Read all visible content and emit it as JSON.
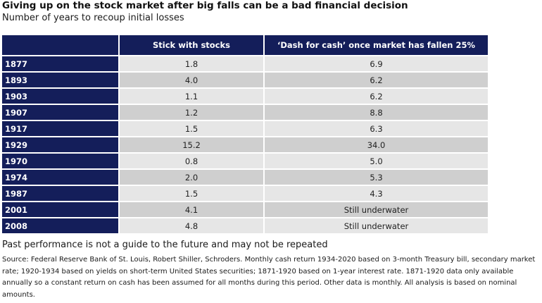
{
  "title": "Giving up on the stock market after big falls can be a bad financial decision",
  "subtitle": "Number of years to recoup initial losses",
  "chart_data": {
    "type": "table",
    "columns": [
      "",
      "Stick with stocks",
      "‘Dash for cash’ once market has fallen 25%"
    ],
    "rows": [
      {
        "year": "1877",
        "stocks": "1.8",
        "cash": "6.9"
      },
      {
        "year": "1893",
        "stocks": "4.0",
        "cash": "6.2"
      },
      {
        "year": "1903",
        "stocks": "1.1",
        "cash": "6.2"
      },
      {
        "year": "1907",
        "stocks": "1.2",
        "cash": "8.8"
      },
      {
        "year": "1917",
        "stocks": "1.5",
        "cash": "6.3"
      },
      {
        "year": "1929",
        "stocks": "15.2",
        "cash": "34.0"
      },
      {
        "year": "1970",
        "stocks": "0.8",
        "cash": "5.0"
      },
      {
        "year": "1974",
        "stocks": "2.0",
        "cash": "5.3"
      },
      {
        "year": "1987",
        "stocks": "1.5",
        "cash": "4.3"
      },
      {
        "year": "2001",
        "stocks": "4.1",
        "cash": "Still underwater"
      },
      {
        "year": "2008",
        "stocks": "4.8",
        "cash": "Still underwater"
      }
    ]
  },
  "colors": {
    "header_bg": "#141e5a",
    "row_light": "#e6e6e6",
    "row_dark": "#cfcfcf"
  },
  "note": "Past performance is not a guide to the future and may not be repeated",
  "source": "Source: Federal Reserve Bank of St. Louis, Robert Shiller, Schroders. Monthly cash return 1934-2020 based on 3-month Treasury bill, secondary market rate; 1920-1934 based on yields on short-term United States securities; 1871-1920 based on 1-year interest rate. 1871-1920 data only available annually so a constant return on cash has been assumed for all months during this period. Other data is monthly. All analysis is based on nominal amounts."
}
